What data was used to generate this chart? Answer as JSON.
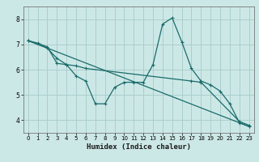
{
  "xlabel": "Humidex (Indice chaleur)",
  "xlim": [
    -0.5,
    23.5
  ],
  "ylim": [
    3.5,
    8.5
  ],
  "yticks": [
    4,
    5,
    6,
    7,
    8
  ],
  "xticks": [
    0,
    1,
    2,
    3,
    4,
    5,
    6,
    7,
    8,
    9,
    10,
    11,
    12,
    13,
    14,
    15,
    16,
    17,
    18,
    19,
    20,
    21,
    22,
    23
  ],
  "bg_color": "#cce8e6",
  "grid_color": "#aacfcc",
  "line_color": "#1a6b6b",
  "line1_x": [
    0,
    1,
    2,
    3,
    4,
    5,
    6,
    7,
    8,
    9,
    10,
    11,
    12,
    13,
    14,
    15,
    16,
    17,
    18,
    19,
    20,
    21,
    22,
    23
  ],
  "line1_y": [
    7.15,
    7.05,
    6.9,
    6.25,
    6.2,
    5.75,
    5.55,
    4.65,
    4.65,
    5.3,
    5.5,
    5.5,
    5.5,
    6.2,
    7.8,
    8.05,
    7.1,
    6.05,
    5.55,
    5.4,
    5.15,
    4.65,
    3.9,
    3.75
  ],
  "line2_x": [
    0,
    2,
    3,
    4,
    5,
    6,
    17,
    18,
    22,
    23
  ],
  "line2_y": [
    7.15,
    6.85,
    6.45,
    6.2,
    6.15,
    6.05,
    5.55,
    5.5,
    3.95,
    3.8
  ],
  "line3_x": [
    0,
    23
  ],
  "line3_y": [
    7.15,
    3.75
  ]
}
